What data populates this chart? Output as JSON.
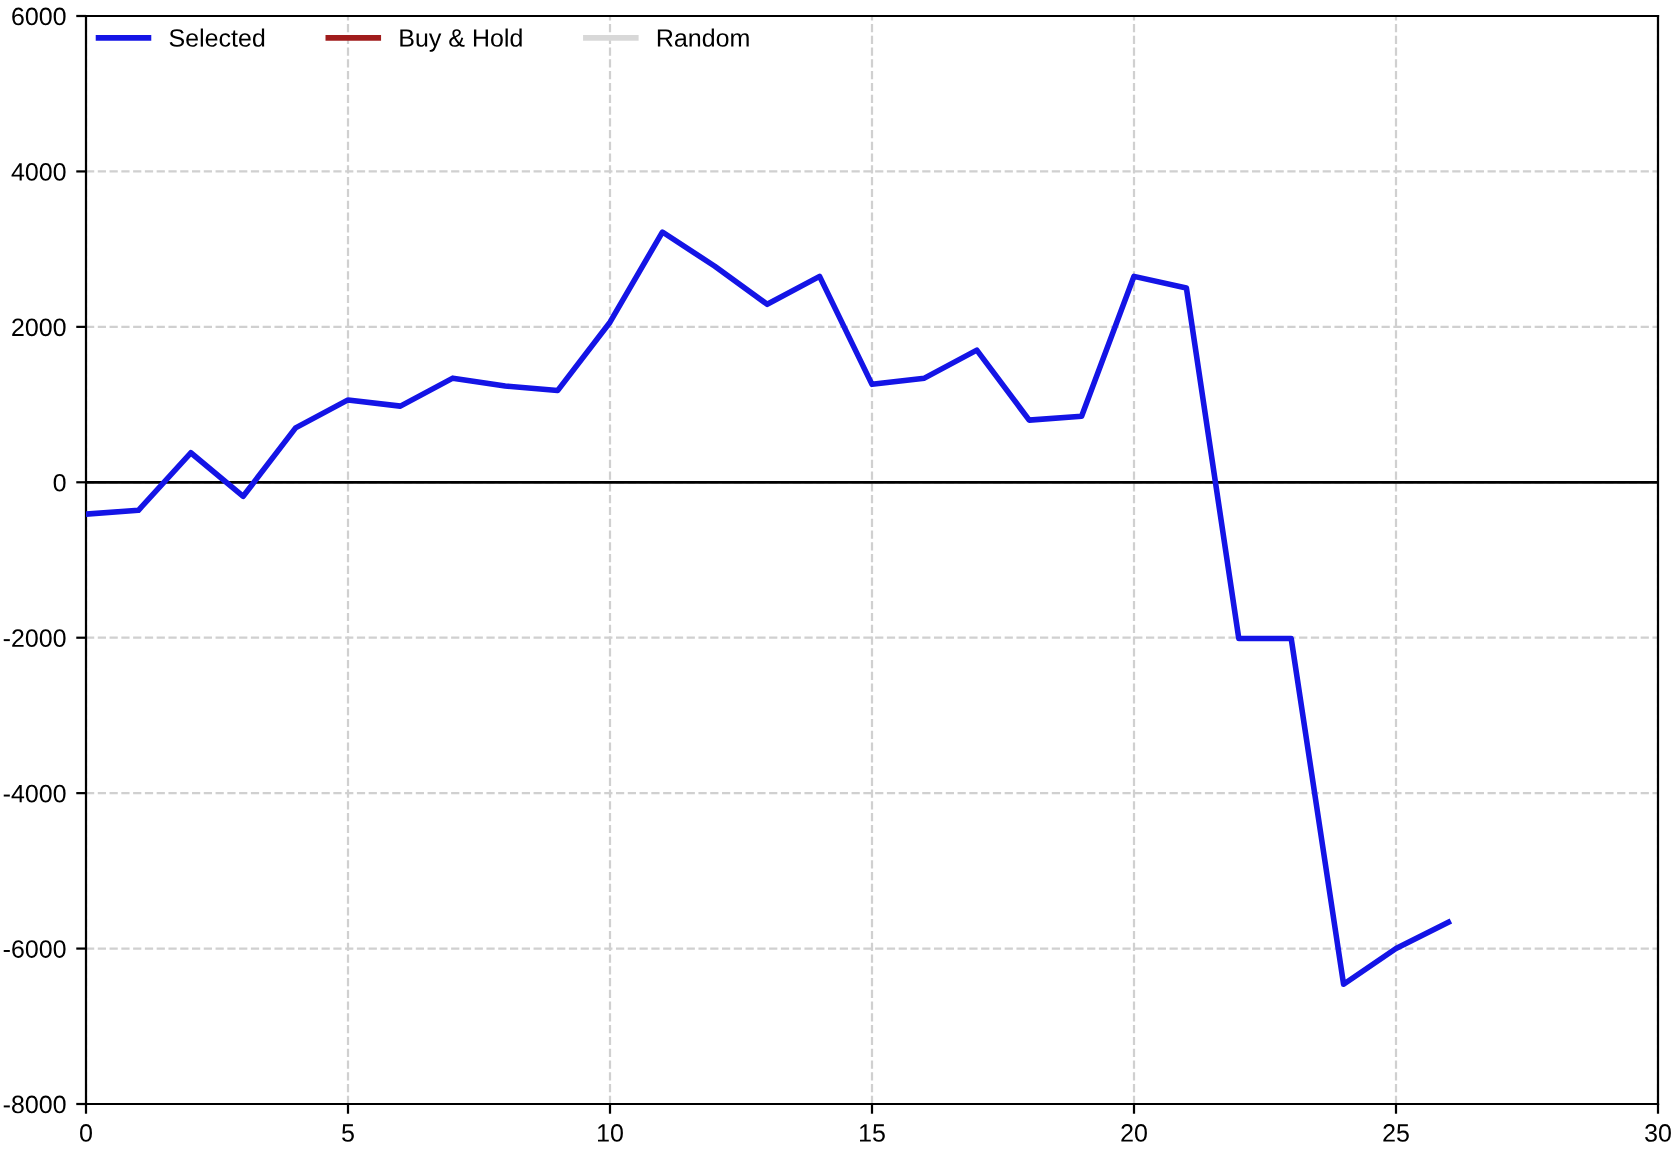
{
  "chart_data": {
    "type": "line",
    "x": [
      0,
      1,
      2,
      3,
      4,
      5,
      6,
      7,
      8,
      9,
      10,
      11,
      12,
      13,
      14,
      15,
      16,
      17,
      18,
      19,
      20,
      21,
      22,
      23,
      24,
      25,
      26
    ],
    "series": [
      {
        "name": "Selected",
        "color": "#1414e6",
        "values": [
          -410,
          -360,
          380,
          -180,
          700,
          1060,
          980,
          1340,
          1240,
          1180,
          2060,
          3220,
          2780,
          2290,
          2650,
          1260,
          1340,
          1700,
          800,
          850,
          2650,
          2500,
          -2010,
          -2010,
          -6460,
          -6000,
          -5660
        ]
      },
      {
        "name": "Buy & Hold",
        "color": "#a01c1c",
        "values": [
          null,
          null,
          null,
          null,
          null,
          null,
          null,
          null,
          null,
          null,
          null,
          null,
          null,
          null,
          null,
          null,
          null,
          null,
          null,
          null,
          null,
          null,
          null,
          null,
          null,
          null,
          null
        ]
      },
      {
        "name": "Random",
        "color": "#d8d8d8",
        "values": [
          null,
          null,
          null,
          null,
          null,
          null,
          null,
          null,
          null,
          null,
          null,
          null,
          null,
          null,
          null,
          null,
          null,
          null,
          null,
          null,
          null,
          null,
          null,
          null,
          null,
          null,
          null
        ]
      }
    ],
    "xlim": [
      0,
      30
    ],
    "xticks": [
      0,
      5,
      10,
      15,
      20,
      25,
      30
    ],
    "ylim": [
      -8000,
      6000
    ],
    "yticks": [
      -8000,
      -6000,
      -4000,
      -2000,
      0,
      2000,
      4000,
      6000
    ],
    "ref_lines": [
      {
        "axis": "y",
        "value": 0,
        "color": "#000000"
      }
    ],
    "grid": true,
    "legend": "top left",
    "line_style": "solid",
    "marker": "none"
  }
}
